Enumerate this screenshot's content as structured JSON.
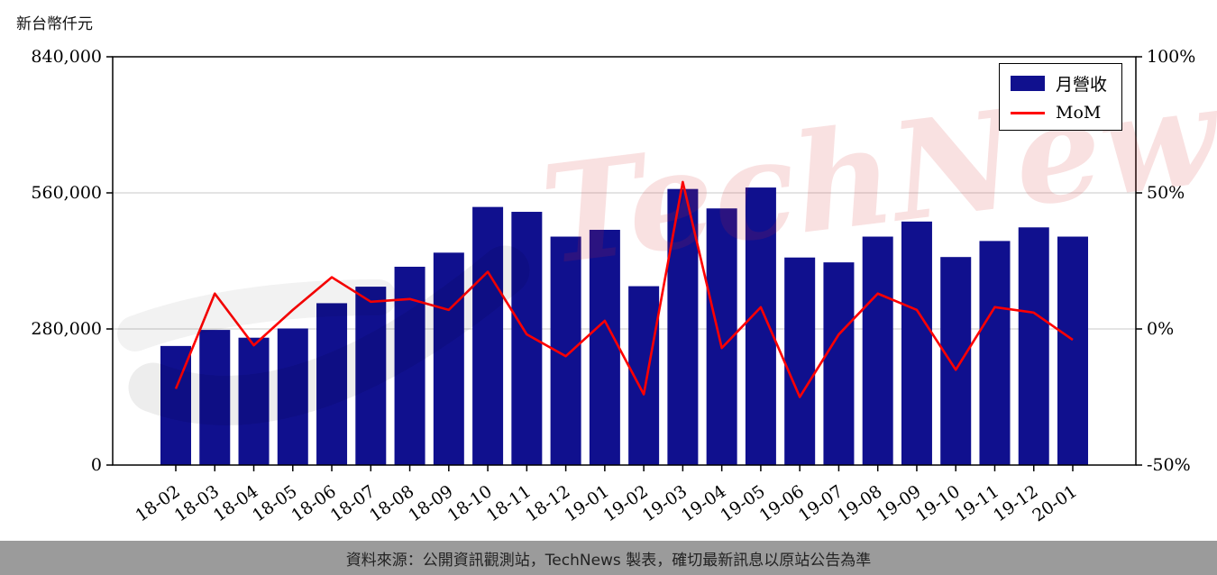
{
  "page": {
    "unit_label": "新台幣仟元",
    "footer": "資料來源：公開資訊觀測站，TechNews 製表，確切最新訊息以原站公告為準"
  },
  "legend": {
    "bar_label": "月營收",
    "line_label": "MoM"
  },
  "watermark": {
    "text": "TechNews"
  },
  "colors": {
    "bar": "#10108e",
    "line": "#ff0000",
    "grid": "#c9c9c9",
    "axis": "#000000",
    "footer_bg": "#9b9b9b"
  },
  "chart_data": {
    "type": "bar",
    "title": "",
    "categories": [
      "18-02",
      "18-03",
      "18-04",
      "18-05",
      "18-06",
      "18-07",
      "18-08",
      "18-09",
      "18-10",
      "18-11",
      "18-12",
      "19-01",
      "19-02",
      "19-03",
      "19-04",
      "19-05",
      "19-06",
      "19-07",
      "19-08",
      "19-09",
      "19-10",
      "19-11",
      "19-12",
      "20-01"
    ],
    "series": [
      {
        "name": "月營收",
        "type": "bar",
        "axis": "left",
        "unit": "新台幣仟元",
        "values": [
          245000,
          278000,
          262000,
          281000,
          333000,
          367000,
          408000,
          437000,
          531000,
          521000,
          470000,
          484000,
          368000,
          568000,
          528000,
          571000,
          427000,
          417000,
          470000,
          501000,
          428000,
          461000,
          489000,
          470000
        ]
      },
      {
        "name": "MoM",
        "type": "line",
        "axis": "right",
        "unit": "%",
        "values": [
          -22,
          13,
          -6,
          7,
          19,
          10,
          11,
          7,
          21,
          -2,
          -10,
          3,
          -24,
          54,
          -7,
          8,
          -25,
          -2,
          13,
          7,
          -15,
          8,
          6,
          -4
        ]
      }
    ],
    "left_axis": {
      "range": [
        0,
        840000
      ],
      "ticks": [
        0,
        280000,
        560000,
        840000
      ],
      "tick_labels": [
        "0",
        "280,000",
        "560,000",
        "840,000"
      ]
    },
    "right_axis": {
      "range": [
        -50,
        100
      ],
      "ticks": [
        -50,
        0,
        50,
        100
      ],
      "tick_labels": [
        "-50%",
        "0%",
        "50%",
        "100%"
      ]
    },
    "grid": "horizontal",
    "legend_position": "top-right"
  }
}
